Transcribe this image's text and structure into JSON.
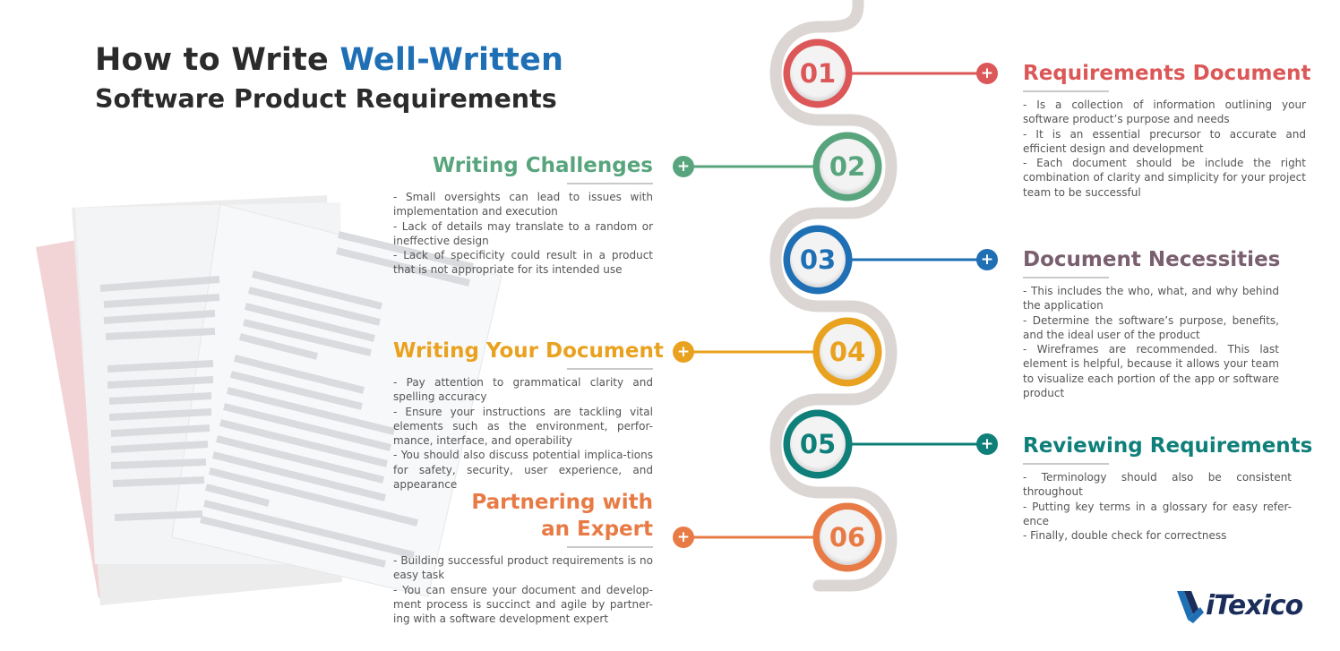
{
  "title": {
    "line1_prefix": "How to Write ",
    "line1_highlight": "Well-Written",
    "line2": "Software Product Requirements"
  },
  "colors": {
    "red": "#dc5757",
    "green": "#58a57d",
    "blue": "#1f6fb5",
    "yellow": "#e9a21f",
    "teal": "#0f7f7a",
    "orange": "#e87b45",
    "mauve": "#7a5f6e",
    "dark": "#2b2b2b"
  },
  "steps": [
    {
      "number": "01",
      "color": "red"
    },
    {
      "number": "02",
      "color": "green"
    },
    {
      "number": "03",
      "color": "blue"
    },
    {
      "number": "04",
      "color": "yellow"
    },
    {
      "number": "05",
      "color": "teal"
    },
    {
      "number": "06",
      "color": "orange"
    }
  ],
  "sections": {
    "requirements_document": {
      "title": "Requirements Document",
      "bullets": [
        "- Is a collection of information outlining your software product’s purpose and needs",
        "- It is an essential precursor to accurate and efficient design and development",
        "- Each document should be include the right combination of clarity and simplicity for your project team to be successful"
      ]
    },
    "writing_challenges": {
      "title": "Writing Challenges",
      "bullets": [
        "- Small oversights can lead to issues with implementation and execution",
        "- Lack of details may translate to a random or ineffective design",
        "- Lack of specificity could result in a product that is not appropriate for its intended use"
      ]
    },
    "document_necessities": {
      "title": "Document Necessities",
      "bullets": [
        "- This includes the who, what, and why behind the application",
        "- Determine the software’s purpose, benefits, and the ideal user of the product",
        "- Wireframes are recommended. This last element is helpful, because it allows your team to visualize each portion of the app or software product"
      ]
    },
    "writing_your_document": {
      "title": "Writing Your Document",
      "bullets": [
        "- Pay attention to grammatical clarity and spelling accuracy",
        "- Ensure your instructions are tackling vital elements such as the environment, perfor-mance, interface, and operability",
        "- You should also discuss potential implica-tions for safety, security, user experience, and appearance"
      ]
    },
    "reviewing_requirements": {
      "title": "Reviewing Requirements",
      "bullets": [
        "- Terminology should also be consistent throughout",
        "- Putting key terms in a glossary for easy refer-ence",
        "- Finally, double check for correctness"
      ]
    },
    "partnering": {
      "title_line1": "Partnering with",
      "title_line2": "an Expert",
      "bullets": [
        "- Building successful product requirements is no easy task",
        "- You can ensure your document and develop-ment process is succinct and agile by partner-ing with a software development expert"
      ]
    }
  },
  "logo": {
    "text": "iTexico",
    "icon": "itexico-logo-icon"
  }
}
